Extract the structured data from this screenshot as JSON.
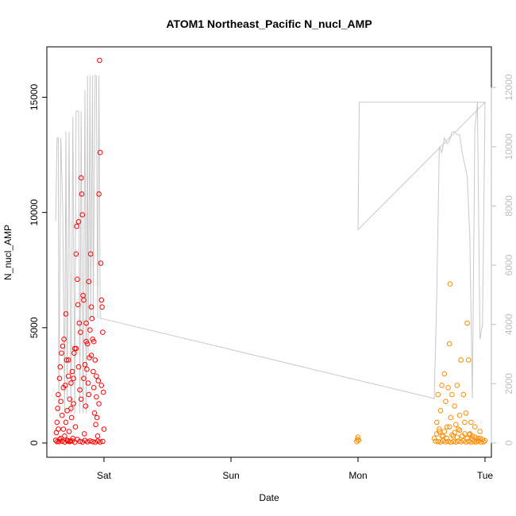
{
  "chart_data": {
    "type": "scatter",
    "title": "ATOM1 Northeast_Pacific N_nucl_AMP",
    "xlabel": "Date",
    "ylabel": "N_nucl_AMP",
    "x_ticks": [
      "Sat",
      "Sun",
      "Mon",
      "Tue"
    ],
    "x_tick_positions_days": [
      0,
      1,
      2,
      3
    ],
    "xlim_days": [
      -0.45,
      3.05
    ],
    "ylim": [
      0,
      16600
    ],
    "y_ticks": [
      0,
      5000,
      10000,
      15000
    ],
    "y2_ticks": [
      0,
      2000,
      4000,
      6000,
      8000,
      10000,
      12000
    ],
    "y2lim": [
      0,
      12700
    ],
    "grid": false,
    "legend": "none",
    "colors": {
      "series_1": "#ff0000",
      "series_2": "#ff8c00",
      "altitude_line": "#c8c8c8",
      "axis": "#000000",
      "secondary_axis": "#bdbdbd"
    },
    "series": [
      {
        "color": "#ff0000",
        "points": [
          [
            -0.38,
            120
          ],
          [
            -0.375,
            450
          ],
          [
            -0.37,
            900
          ],
          [
            -0.365,
            1500
          ],
          [
            -0.36,
            2100
          ],
          [
            -0.355,
            60
          ],
          [
            -0.35,
            2800
          ],
          [
            -0.345,
            3300
          ],
          [
            -0.34,
            200
          ],
          [
            -0.335,
            3900
          ],
          [
            -0.33,
            1200
          ],
          [
            -0.325,
            4200
          ],
          [
            -0.32,
            600
          ],
          [
            -0.315,
            4500
          ],
          [
            -0.31,
            300
          ],
          [
            -0.305,
            2500
          ],
          [
            -0.3,
            5600
          ],
          [
            -0.295,
            3600
          ],
          [
            -0.29,
            1400
          ],
          [
            -0.285,
            80
          ],
          [
            -0.28,
            2900
          ],
          [
            -0.275,
            500
          ],
          [
            -0.27,
            1900
          ],
          [
            -0.265,
            90
          ],
          [
            -0.26,
            2600
          ],
          [
            -0.255,
            1100
          ],
          [
            -0.25,
            3100
          ],
          [
            -0.245,
            200
          ],
          [
            -0.24,
            1700
          ],
          [
            -0.235,
            3900
          ],
          [
            -0.23,
            4100
          ],
          [
            -0.225,
            700
          ],
          [
            -0.22,
            8200
          ],
          [
            -0.215,
            9400
          ],
          [
            -0.21,
            7100
          ],
          [
            -0.205,
            6000
          ],
          [
            -0.2,
            9600
          ],
          [
            -0.195,
            5200
          ],
          [
            -0.19,
            2300
          ],
          [
            -0.185,
            4800
          ],
          [
            -0.18,
            11500
          ],
          [
            -0.175,
            10800
          ],
          [
            -0.17,
            9900
          ],
          [
            -0.165,
            6400
          ],
          [
            -0.16,
            2800
          ],
          [
            -0.155,
            400
          ],
          [
            -0.15,
            3400
          ],
          [
            -0.145,
            1600
          ],
          [
            -0.14,
            5200
          ],
          [
            -0.135,
            3200
          ],
          [
            -0.13,
            4300
          ],
          [
            -0.125,
            2600
          ],
          [
            -0.12,
            7000
          ],
          [
            -0.115,
            3700
          ],
          [
            -0.11,
            4900
          ],
          [
            -0.105,
            8200
          ],
          [
            -0.1,
            5900
          ],
          [
            -0.095,
            5400
          ],
          [
            -0.09,
            4500
          ],
          [
            -0.085,
            3100
          ],
          [
            -0.08,
            2400
          ],
          [
            -0.075,
            1300
          ],
          [
            -0.07,
            3600
          ],
          [
            -0.065,
            800
          ],
          [
            -0.06,
            2000
          ],
          [
            -0.055,
            1100
          ],
          [
            -0.05,
            300
          ],
          [
            -0.045,
            2700
          ],
          [
            -0.04,
            10800
          ],
          [
            -0.035,
            16600
          ],
          [
            -0.03,
            12600
          ],
          [
            -0.025,
            7800
          ],
          [
            -0.02,
            6200
          ],
          [
            -0.015,
            5900
          ],
          [
            -0.01,
            4800
          ],
          [
            -0.005,
            2200
          ],
          [
            0.0,
            600
          ],
          [
            -0.37,
            60
          ],
          [
            -0.35,
            150
          ],
          [
            -0.33,
            80
          ],
          [
            -0.31,
            40
          ],
          [
            -0.29,
            120
          ],
          [
            -0.27,
            60
          ],
          [
            -0.25,
            90
          ],
          [
            -0.23,
            30
          ],
          [
            -0.21,
            150
          ],
          [
            -0.19,
            70
          ],
          [
            -0.17,
            40
          ],
          [
            -0.15,
            110
          ],
          [
            -0.13,
            50
          ],
          [
            -0.11,
            90
          ],
          [
            -0.09,
            60
          ],
          [
            -0.07,
            30
          ],
          [
            -0.05,
            80
          ],
          [
            -0.03,
            40
          ],
          [
            -0.01,
            70
          ],
          [
            -0.36,
            600
          ],
          [
            -0.34,
            1800
          ],
          [
            -0.32,
            2400
          ],
          [
            -0.3,
            900
          ],
          [
            -0.28,
            3600
          ],
          [
            -0.26,
            1500
          ],
          [
            -0.24,
            2800
          ],
          [
            -0.22,
            4100
          ],
          [
            -0.2,
            3300
          ],
          [
            -0.18,
            1900
          ],
          [
            -0.16,
            6200
          ],
          [
            -0.14,
            4400
          ],
          [
            -0.12,
            2100
          ],
          [
            -0.1,
            3800
          ],
          [
            -0.08,
            4400
          ],
          [
            -0.06,
            2900
          ],
          [
            -0.04,
            1700
          ],
          [
            -0.02,
            2500
          ]
        ]
      },
      {
        "color": "#ff8c00",
        "points": [
          [
            1.99,
            60
          ],
          [
            1.995,
            150
          ],
          [
            2.0,
            250
          ],
          [
            2.005,
            120
          ],
          [
            2.6,
            200
          ],
          [
            2.62,
            900
          ],
          [
            2.63,
            2100
          ],
          [
            2.64,
            500
          ],
          [
            2.65,
            1400
          ],
          [
            2.66,
            2500
          ],
          [
            2.67,
            300
          ],
          [
            2.68,
            3000
          ],
          [
            2.69,
            1800
          ],
          [
            2.7,
            700
          ],
          [
            2.71,
            2400
          ],
          [
            2.72,
            4300
          ],
          [
            2.725,
            6900
          ],
          [
            2.73,
            1100
          ],
          [
            2.74,
            2100
          ],
          [
            2.75,
            300
          ],
          [
            2.76,
            1600
          ],
          [
            2.77,
            800
          ],
          [
            2.78,
            2500
          ],
          [
            2.79,
            600
          ],
          [
            2.8,
            1200
          ],
          [
            2.81,
            3600
          ],
          [
            2.82,
            300
          ],
          [
            2.83,
            2100
          ],
          [
            2.84,
            900
          ],
          [
            2.85,
            1300
          ],
          [
            2.86,
            5200
          ],
          [
            2.87,
            3600
          ],
          [
            2.88,
            400
          ],
          [
            2.89,
            900
          ],
          [
            2.9,
            300
          ],
          [
            2.92,
            700
          ],
          [
            2.94,
            200
          ],
          [
            2.96,
            500
          ],
          [
            2.98,
            150
          ],
          [
            3.0,
            100
          ],
          [
            2.61,
            80
          ],
          [
            2.63,
            60
          ],
          [
            2.65,
            40
          ],
          [
            2.67,
            90
          ],
          [
            2.69,
            50
          ],
          [
            2.71,
            70
          ],
          [
            2.73,
            30
          ],
          [
            2.75,
            60
          ],
          [
            2.77,
            40
          ],
          [
            2.79,
            80
          ],
          [
            2.81,
            50
          ],
          [
            2.83,
            90
          ],
          [
            2.85,
            40
          ],
          [
            2.87,
            70
          ],
          [
            2.89,
            30
          ],
          [
            2.91,
            60
          ],
          [
            2.93,
            40
          ],
          [
            2.95,
            80
          ],
          [
            2.97,
            30
          ],
          [
            2.99,
            50
          ],
          [
            2.62,
            400
          ],
          [
            2.64,
            600
          ],
          [
            2.66,
            300
          ],
          [
            2.68,
            500
          ],
          [
            2.7,
            200
          ],
          [
            2.72,
            700
          ],
          [
            2.74,
            350
          ],
          [
            2.76,
            450
          ],
          [
            2.78,
            250
          ],
          [
            2.8,
            550
          ],
          [
            2.82,
            300
          ],
          [
            2.84,
            400
          ],
          [
            2.86,
            200
          ],
          [
            2.88,
            350
          ],
          [
            2.9,
            150
          ],
          [
            2.92,
            250
          ],
          [
            2.94,
            100
          ],
          [
            2.96,
            200
          ]
        ]
      }
    ],
    "altitude_line": [
      [
        -0.38,
        7500
      ],
      [
        -0.37,
        10300
      ],
      [
        -0.36,
        10300
      ],
      [
        -0.355,
        1000
      ],
      [
        -0.34,
        10300
      ],
      [
        -0.325,
        8000
      ],
      [
        -0.31,
        1000
      ],
      [
        -0.3,
        10500
      ],
      [
        -0.29,
        1500
      ],
      [
        -0.275,
        10500
      ],
      [
        -0.26,
        1000
      ],
      [
        -0.245,
        11000
      ],
      [
        -0.23,
        1000
      ],
      [
        -0.22,
        11200
      ],
      [
        -0.2,
        11200
      ],
      [
        -0.19,
        1000
      ],
      [
        -0.18,
        11200
      ],
      [
        -0.165,
        1000
      ],
      [
        -0.15,
        11900
      ],
      [
        -0.14,
        1000
      ],
      [
        -0.13,
        12400
      ],
      [
        -0.125,
        3000
      ],
      [
        -0.11,
        12400
      ],
      [
        -0.105,
        4200
      ],
      [
        -0.09,
        12400
      ],
      [
        -0.085,
        4200
      ],
      [
        -0.07,
        12400
      ],
      [
        -0.06,
        12400
      ],
      [
        -0.05,
        4200
      ],
      [
        -0.04,
        12400
      ],
      [
        -0.03,
        4200
      ],
      [
        -0.02,
        4200
      ],
      [
        2.6,
        1500
      ],
      [
        2.62,
        5000
      ],
      [
        2.64,
        10000
      ],
      [
        2.66,
        9800
      ],
      [
        2.68,
        10300
      ],
      [
        2.7,
        10100
      ],
      [
        2.72,
        10200
      ],
      [
        2.74,
        10500
      ],
      [
        2.76,
        10500
      ],
      [
        2.78,
        10400
      ],
      [
        2.8,
        10400
      ],
      [
        2.82,
        9800
      ],
      [
        2.84,
        9400
      ],
      [
        2.86,
        9000
      ],
      [
        2.88,
        7000
      ],
      [
        2.9,
        1500
      ],
      [
        2.92,
        10600
      ],
      [
        2.94,
        11500
      ],
      [
        2.96,
        3500
      ],
      [
        2.98,
        4000
      ],
      [
        3.0,
        11500
      ],
      [
        2.0,
        7200
      ],
      [
        2.01,
        11500
      ],
      [
        3.0,
        11500
      ]
    ]
  }
}
